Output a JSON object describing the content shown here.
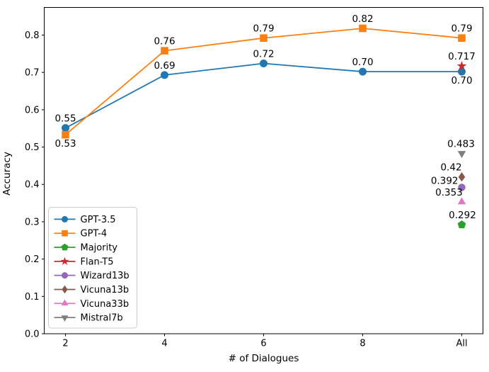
{
  "chart_data": {
    "type": "line",
    "title": "",
    "xlabel": "# of Dialogues",
    "ylabel": "Accuracy",
    "x_categories": [
      "2",
      "4",
      "6",
      "8",
      "All"
    ],
    "y_tick_labels": [
      "0.0",
      "0.1",
      "0.2",
      "0.3",
      "0.4",
      "0.5",
      "0.6",
      "0.7",
      "0.8"
    ],
    "ylim": [
      0,
      0.874
    ],
    "grid": false,
    "legend_position": "lower left",
    "axis_color": "#000000",
    "series": [
      {
        "name": "GPT-3.5",
        "color": "#1f77b4",
        "marker": "circle",
        "values": [
          0.551,
          0.693,
          0.724,
          0.702,
          0.702
        ],
        "point_labels": [
          "0.55",
          "0.69",
          "0.72",
          "0.70",
          "0.70"
        ],
        "label_placement": [
          "above",
          "above",
          "above",
          "above",
          "below"
        ]
      },
      {
        "name": "GPT-4",
        "color": "#ff7f0e",
        "marker": "square",
        "values": [
          0.533,
          0.758,
          0.792,
          0.818,
          0.792
        ],
        "point_labels": [
          "0.53",
          "0.76",
          "0.79",
          "0.82",
          "0.79"
        ],
        "label_placement": [
          "below",
          "above",
          "above",
          "above",
          "above"
        ]
      }
    ],
    "points": [
      {
        "name": "Flan-T5",
        "color": "#d62728",
        "marker": "star",
        "x": "All",
        "value": 0.717,
        "label": "0.717",
        "placement": "above",
        "dx": 0
      },
      {
        "name": "Mistral7b",
        "color": "#7f7f7f",
        "marker": "triangle-down",
        "x": "All",
        "value": 0.483,
        "label": "0.483",
        "placement": "above",
        "dx": -1
      },
      {
        "name": "Vicuna13b",
        "color": "#8c564b",
        "marker": "diamond",
        "x": "All",
        "value": 0.42,
        "label": "0.42",
        "placement": "above",
        "dx": -15
      },
      {
        "name": "Wizard13b",
        "color": "#9467bd",
        "marker": "circle",
        "x": "All",
        "value": 0.392,
        "label": "0.392",
        "placement": "left",
        "dx": 0
      },
      {
        "name": "Vicuna33b",
        "color": "#e377c2",
        "marker": "triangle-up",
        "x": "All",
        "value": 0.353,
        "label": "0.353",
        "placement": "above",
        "dx": -18
      },
      {
        "name": "Majority",
        "color": "#2ca02c",
        "marker": "pentagon",
        "x": "All",
        "value": 0.292,
        "label": "0.292",
        "placement": "above",
        "dx": 1
      }
    ],
    "legend": [
      "GPT-3.5",
      "GPT-4",
      "Majority",
      "Flan-T5",
      "Wizard13b",
      "Vicuna13b",
      "Vicuna33b",
      "Mistral7b"
    ]
  }
}
